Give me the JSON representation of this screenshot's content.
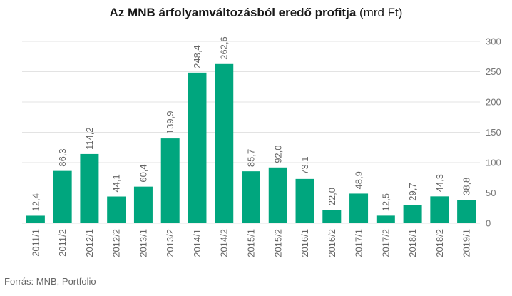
{
  "chart_data": {
    "type": "bar",
    "title": "Az MNB árfolyamváltozásból eredő profitja",
    "subtitle": "(mrd Ft)",
    "categories": [
      "2011/1",
      "2011/2",
      "2012/1",
      "2012/2",
      "2013/1",
      "2013/2",
      "2014/1",
      "2014/2",
      "2015/1",
      "2015/2",
      "2016/1",
      "2016/2",
      "2017/1",
      "2017/2",
      "2018/1",
      "2018/2",
      "2019/1"
    ],
    "values": [
      12.4,
      86.3,
      114.2,
      44.1,
      60.4,
      139.9,
      248.4,
      262.6,
      85.7,
      92.0,
      73.1,
      22.0,
      48.9,
      12.5,
      29.7,
      44.3,
      38.8
    ],
    "value_labels": [
      "12,4",
      "86,3",
      "114,2",
      "44,1",
      "60,4",
      "139,9",
      "248,4",
      "262,6",
      "85,7",
      "92,0",
      "73,1",
      "22,0",
      "48,9",
      "12,5",
      "29,7",
      "44,3",
      "38,8"
    ],
    "ylim": [
      0,
      300
    ],
    "yticks": [
      0,
      50,
      100,
      150,
      200,
      250,
      300
    ],
    "y_axis_side": "right",
    "grid": true,
    "bar_color": "#00a67e",
    "grid_color": "#e3e3e3",
    "xlabel": "",
    "ylabel": ""
  },
  "source": "Forrás: MNB, Portfolio"
}
